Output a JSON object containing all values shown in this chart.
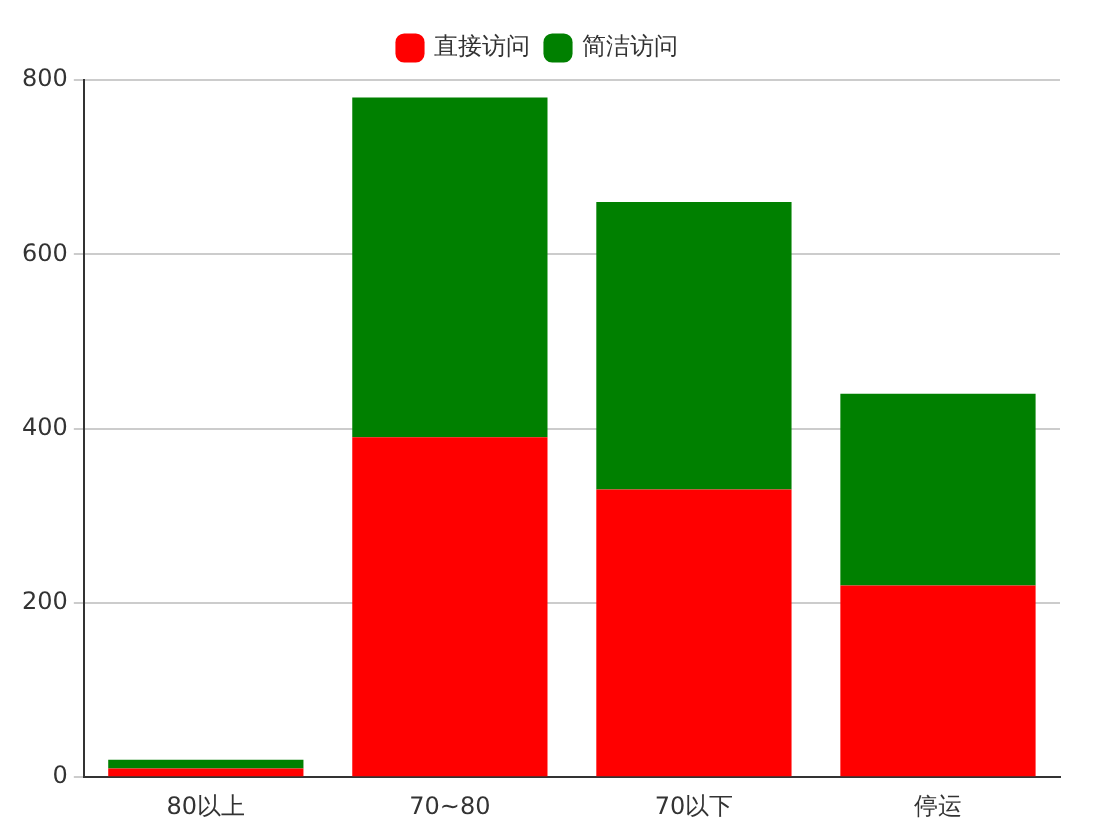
{
  "chart_data": {
    "type": "bar",
    "stacked": true,
    "categories": [
      "80以上",
      "70~80",
      "70以下",
      "停运"
    ],
    "series": [
      {
        "name": "直接访问",
        "color": "#ff0000",
        "values": [
          10,
          390,
          330,
          220
        ]
      },
      {
        "name": "简洁访问",
        "color": "#008000",
        "values": [
          10,
          390,
          330,
          220
        ]
      }
    ],
    "ylim": [
      0,
      800
    ],
    "yticks": [
      0,
      200,
      400,
      600,
      800
    ],
    "grid": "y",
    "legend": "top"
  }
}
